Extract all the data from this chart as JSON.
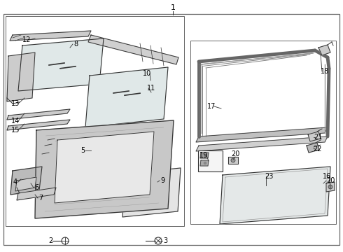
{
  "bg_color": "#ffffff",
  "line_color": "#333333",
  "gray_fill": "#d8d8d8",
  "light_fill": "#eeeeee",
  "border_color": "#666666"
}
